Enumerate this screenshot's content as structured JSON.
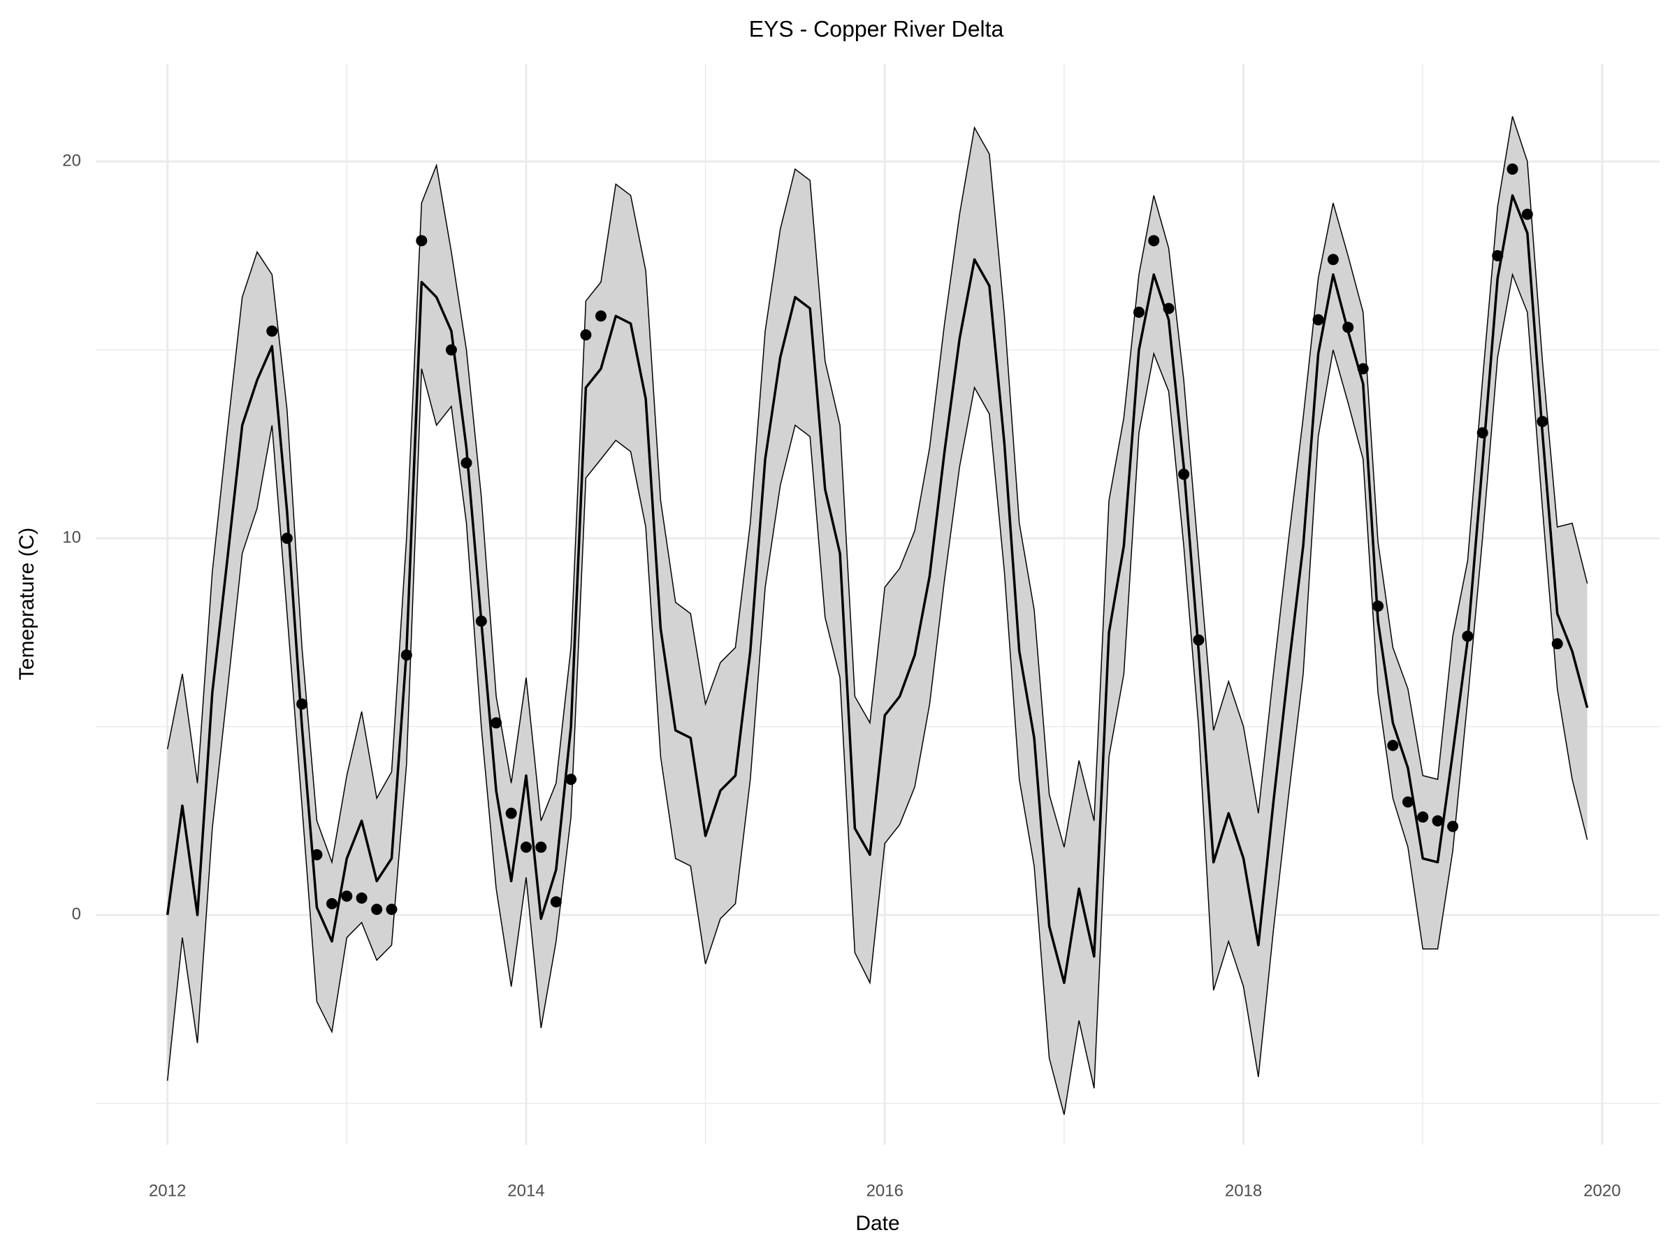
{
  "chart_data": {
    "type": "line",
    "title": "EYS - Copper River Delta",
    "x_label": "Date",
    "y_label": "Temeprature (C)",
    "xlim": [
      2011.6,
      2020.32
    ],
    "ylim": [
      -6.1,
      22.6
    ],
    "xticks": [
      2012,
      2014,
      2016,
      2018,
      2020
    ],
    "yticks": [
      0,
      10,
      20
    ],
    "xminor": [
      2013,
      2015,
      2017,
      2019
    ],
    "yminor": [
      -5,
      5,
      15
    ],
    "grid": true,
    "x": [
      2012,
      2012.083,
      2012.167,
      2012.25,
      2012.333,
      2012.417,
      2012.5,
      2012.583,
      2012.667,
      2012.75,
      2012.833,
      2012.917,
      2013,
      2013.083,
      2013.167,
      2013.25,
      2013.333,
      2013.417,
      2013.5,
      2013.583,
      2013.667,
      2013.75,
      2013.833,
      2013.917,
      2014,
      2014.083,
      2014.167,
      2014.25,
      2014.333,
      2014.417,
      2014.5,
      2014.583,
      2014.667,
      2014.75,
      2014.833,
      2014.917,
      2015,
      2015.083,
      2015.167,
      2015.25,
      2015.333,
      2015.417,
      2015.5,
      2015.583,
      2015.667,
      2015.75,
      2015.833,
      2015.917,
      2016,
      2016.083,
      2016.167,
      2016.25,
      2016.333,
      2016.417,
      2016.5,
      2016.583,
      2016.667,
      2016.75,
      2016.833,
      2016.917,
      2017,
      2017.083,
      2017.167,
      2017.25,
      2017.333,
      2017.417,
      2017.5,
      2017.583,
      2017.667,
      2017.75,
      2017.833,
      2017.917,
      2018,
      2018.083,
      2018.167,
      2018.25,
      2018.333,
      2018.417,
      2018.5,
      2018.583,
      2018.667,
      2018.75,
      2018.833,
      2018.917,
      2019,
      2019.083,
      2019.167,
      2019.25,
      2019.333,
      2019.417,
      2019.5,
      2019.583,
      2019.667,
      2019.75,
      2019.833,
      2019.917
    ],
    "band": {
      "color": "#d3d3d3",
      "edge_color": "#000000",
      "upper": [
        4.4,
        6.4,
        3.5,
        9.1,
        12.8,
        16.4,
        17.6,
        17.0,
        13.4,
        7.1,
        2.5,
        1.4,
        3.7,
        5.4,
        3.1,
        3.8,
        10.0,
        18.9,
        19.9,
        17.6,
        15.0,
        11.1,
        5.8,
        3.5,
        6.3,
        2.5,
        3.5,
        7.1,
        16.3,
        16.8,
        19.4,
        19.1,
        17.1,
        11.0,
        8.3,
        8.0,
        5.6,
        6.7,
        7.1,
        10.4,
        15.5,
        18.2,
        19.8,
        19.5,
        14.7,
        13.0,
        5.8,
        5.1,
        8.7,
        9.2,
        10.2,
        12.4,
        15.7,
        18.6,
        20.9,
        20.2,
        15.9,
        10.4,
        8.1,
        3.2,
        1.8,
        4.1,
        2.5,
        11.0,
        13.2,
        17.0,
        19.1,
        17.7,
        14.2,
        9.5,
        4.9,
        6.2,
        5.0,
        2.7,
        6.4,
        9.9,
        13.2,
        16.9,
        18.9,
        17.5,
        16.0,
        9.9,
        7.1,
        6.0,
        3.7,
        3.6,
        7.4,
        9.4,
        14.2,
        18.8,
        21.2,
        20.0,
        14.7,
        10.3,
        10.4,
        8.8
      ],
      "lower": [
        -4.4,
        -0.6,
        -3.4,
        2.3,
        5.9,
        9.6,
        10.8,
        13.0,
        8.0,
        2.9,
        -2.3,
        -3.1,
        -0.6,
        -0.2,
        -1.2,
        -0.8,
        4.0,
        14.5,
        13.0,
        13.5,
        10.4,
        5.0,
        0.7,
        -1.9,
        1.0,
        -3.0,
        -0.7,
        2.6,
        11.6,
        12.1,
        12.6,
        12.3,
        10.3,
        4.2,
        1.5,
        1.3,
        -1.3,
        -0.1,
        0.3,
        3.6,
        8.7,
        11.4,
        13.0,
        12.7,
        7.9,
        6.3,
        -1.0,
        -1.8,
        1.9,
        2.4,
        3.4,
        5.6,
        8.9,
        11.9,
        14.0,
        13.3,
        9.1,
        3.6,
        1.3,
        -3.8,
        -5.3,
        -2.8,
        -4.6,
        4.2,
        6.4,
        12.8,
        14.9,
        13.9,
        9.8,
        5.0,
        -2.0,
        -0.7,
        -1.9,
        -4.3,
        -0.4,
        3.1,
        6.4,
        12.7,
        15.0,
        13.6,
        12.1,
        5.9,
        3.1,
        1.8,
        -0.9,
        -0.9,
        1.7,
        5.7,
        10.0,
        14.8,
        17.0,
        16.0,
        10.8,
        6.0,
        3.6,
        2.0
      ]
    },
    "series": [
      {
        "color": "#000000",
        "values": [
          0,
          2.9,
          0,
          5.9,
          9.4,
          13.0,
          14.2,
          15.1,
          10.7,
          5.0,
          0.2,
          -0.7,
          1.5,
          2.5,
          0.9,
          1.5,
          7.0,
          16.8,
          16.4,
          15.5,
          12.4,
          7.8,
          3.3,
          0.9,
          3.7,
          -0.1,
          1.2,
          5.0,
          14.0,
          14.5,
          15.9,
          15.7,
          13.7,
          7.6,
          4.9,
          4.7,
          2.1,
          3.3,
          3.7,
          7.0,
          12.1,
          14.8,
          16.4,
          16.1,
          11.3,
          9.6,
          2.3,
          1.6,
          5.3,
          5.8,
          6.9,
          9.0,
          12.3,
          15.3,
          17.4,
          16.7,
          12.5,
          7.0,
          4.7,
          -0.3,
          -1.8,
          0.7,
          -1.1,
          7.5,
          9.8,
          15.0,
          17.0,
          15.8,
          11.9,
          7.0,
          1.4,
          2.7,
          1.5,
          -0.8,
          3.0,
          6.5,
          9.8,
          14.9,
          17.0,
          15.5,
          14.1,
          7.8,
          5.1,
          3.9,
          1.5,
          1.4,
          4.3,
          7.3,
          12.0,
          16.9,
          19.1,
          18.1,
          12.8,
          8.0,
          7.0,
          5.5
        ]
      }
    ],
    "points": {
      "color": "#000000",
      "values": [
        null,
        null,
        null,
        null,
        null,
        null,
        null,
        15.5,
        10.0,
        5.6,
        1.6,
        0.3,
        0.5,
        0.45,
        0.15,
        0.15,
        6.9,
        17.9,
        null,
        15.0,
        12.0,
        7.8,
        5.1,
        2.7,
        1.8,
        1.8,
        0.35,
        3.6,
        15.4,
        15.9,
        null,
        null,
        null,
        null,
        null,
        null,
        null,
        null,
        null,
        null,
        null,
        null,
        null,
        null,
        null,
        null,
        null,
        null,
        null,
        null,
        null,
        null,
        null,
        null,
        null,
        null,
        null,
        null,
        null,
        null,
        null,
        null,
        null,
        null,
        null,
        16.0,
        17.9,
        16.1,
        11.7,
        7.3,
        null,
        null,
        null,
        null,
        null,
        null,
        null,
        15.8,
        17.4,
        15.6,
        14.5,
        8.2,
        4.5,
        3.0,
        2.6,
        2.5,
        2.35,
        7.4,
        12.8,
        17.5,
        19.8,
        18.6,
        13.1,
        7.2,
        null,
        null
      ]
    }
  }
}
